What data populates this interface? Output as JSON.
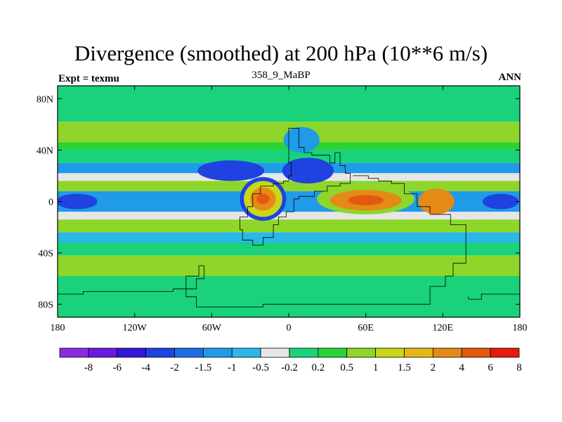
{
  "chart_data": {
    "type": "heatmap",
    "title": "Divergence (smoothed) at 200 hPa (10**6 m/s)",
    "subtitle": "358_9_MaBP",
    "left_string": "Expt = texmu",
    "right_string": "ANN",
    "x_ticks": [
      "180",
      "120W",
      "60W",
      "0",
      "60E",
      "120E",
      "180"
    ],
    "x_tick_values": [
      -180,
      -120,
      -60,
      0,
      60,
      120,
      180
    ],
    "y_ticks": [
      "80N",
      "40N",
      "0",
      "40S",
      "80S"
    ],
    "y_tick_values": [
      80,
      40,
      0,
      -40,
      -80
    ],
    "xlim": [
      -180,
      180
    ],
    "ylim": [
      -90,
      90
    ],
    "colorbar_labels": [
      "-8",
      "-6",
      "-4",
      "-2",
      "-1.5",
      "-1",
      "-0.5",
      "-0.2",
      "0.2",
      "0.5",
      "1",
      "1.5",
      "2",
      "4",
      "6",
      "8"
    ],
    "colorbar_colors": [
      "#8a2be2",
      "#6a1ae0",
      "#3418d8",
      "#1f42e0",
      "#1e6fe6",
      "#1f9be8",
      "#29b8e8",
      "#e6e6e6",
      "#19d27a",
      "#2ad336",
      "#8ed62a",
      "#c9d61a",
      "#e5b81a",
      "#e58a16",
      "#e55810",
      "#e51a10"
    ],
    "bands": [
      {
        "lat_max": 90,
        "lat_min": 62,
        "value": 0
      },
      {
        "lat_max": 62,
        "lat_min": 46,
        "value": 0.6
      },
      {
        "lat_max": 46,
        "lat_min": 40,
        "value": 0.4
      },
      {
        "lat_max": 40,
        "lat_min": 30,
        "value": 0
      },
      {
        "lat_max": 30,
        "lat_min": 22,
        "value": -1.2
      },
      {
        "lat_max": 22,
        "lat_min": 16,
        "value": -0.4
      },
      {
        "lat_max": 16,
        "lat_min": 8,
        "value": 0.6
      },
      {
        "lat_max": 8,
        "lat_min": -8,
        "value": -1.2
      },
      {
        "lat_max": -8,
        "lat_min": -14,
        "value": -0.4
      },
      {
        "lat_max": -14,
        "lat_min": -24,
        "value": 0.6
      },
      {
        "lat_max": -24,
        "lat_min": -32,
        "value": -0.6
      },
      {
        "lat_max": -32,
        "lat_min": -42,
        "value": 0
      },
      {
        "lat_max": -42,
        "lat_min": -58,
        "value": 0.6
      },
      {
        "lat_max": -58,
        "lat_min": -90,
        "value": 0
      }
    ],
    "anomalies": [
      {
        "lon": -20,
        "lat": 2,
        "rx": 18,
        "ry": 17,
        "value": -3
      },
      {
        "lon": -20,
        "lat": 2,
        "rx": 15,
        "ry": 14,
        "value": 1.2
      },
      {
        "lon": -20,
        "lat": 2,
        "rx": 10,
        "ry": 9,
        "value": 3
      },
      {
        "lon": -20,
        "lat": 2,
        "rx": 5,
        "ry": 4,
        "value": 5
      },
      {
        "lon": -45,
        "lat": 24,
        "rx": 26,
        "ry": 8,
        "value": -3
      },
      {
        "lon": 15,
        "lat": 24,
        "rx": 20,
        "ry": 10,
        "value": -2.5
      },
      {
        "lon": 60,
        "lat": 2,
        "rx": 38,
        "ry": 12,
        "value": 0.8
      },
      {
        "lon": 60,
        "lat": 1,
        "rx": 28,
        "ry": 8,
        "value": 3
      },
      {
        "lon": 60,
        "lat": 1,
        "rx": 14,
        "ry": 4,
        "value": 5
      },
      {
        "lon": 115,
        "lat": 0,
        "rx": 14,
        "ry": 10,
        "value": 3
      },
      {
        "lon": 165,
        "lat": 0,
        "rx": 14,
        "ry": 6,
        "value": -3
      },
      {
        "lon": -165,
        "lat": 0,
        "rx": 16,
        "ry": 6,
        "value": -3
      },
      {
        "lon": 10,
        "lat": 48,
        "rx": 14,
        "ry": 10,
        "value": -1.2
      }
    ],
    "contours": [
      [
        [
          0,
          57
        ],
        [
          8,
          57
        ],
        [
          8,
          42
        ],
        [
          12,
          38
        ],
        [
          18,
          36
        ],
        [
          28,
          36
        ],
        [
          32,
          30
        ],
        [
          36,
          38
        ],
        [
          40,
          28
        ],
        [
          44,
          22
        ],
        [
          48,
          14
        ],
        [
          40,
          12
        ],
        [
          30,
          8
        ],
        [
          20,
          4
        ],
        [
          8,
          2
        ],
        [
          4,
          -8
        ],
        [
          -2,
          -12
        ],
        [
          -8,
          -18
        ],
        [
          -12,
          -28
        ],
        [
          -20,
          -34
        ],
        [
          -28,
          -30
        ],
        [
          -36,
          -22
        ],
        [
          -38,
          -12
        ],
        [
          -32,
          -4
        ],
        [
          -28,
          6
        ],
        [
          -22,
          12
        ],
        [
          -12,
          14
        ],
        [
          -4,
          16
        ],
        [
          0,
          20
        ],
        [
          2,
          30
        ],
        [
          0,
          40
        ],
        [
          0,
          57
        ]
      ],
      [
        [
          50,
          20
        ],
        [
          62,
          18
        ],
        [
          70,
          16
        ],
        [
          80,
          14
        ],
        [
          90,
          6
        ],
        [
          100,
          -4
        ],
        [
          110,
          -10
        ],
        [
          126,
          -18
        ],
        [
          138,
          -24
        ],
        [
          138,
          -48
        ],
        [
          128,
          -58
        ],
        [
          122,
          -66
        ],
        [
          110,
          -80
        ],
        [
          60,
          -80
        ],
        [
          10,
          -80
        ],
        [
          -20,
          -82
        ],
        [
          -60,
          -82
        ],
        [
          -72,
          -74
        ],
        [
          -80,
          -66
        ],
        [
          -80,
          -58
        ],
        [
          -70,
          -50
        ],
        [
          -66,
          -60
        ],
        [
          -72,
          -68
        ],
        [
          -90,
          -70
        ],
        [
          -120,
          -70
        ],
        [
          -160,
          -72
        ],
        [
          -180,
          -72
        ]
      ],
      [
        [
          180,
          -72
        ],
        [
          150,
          -76
        ],
        [
          140,
          -74
        ]
      ]
    ]
  }
}
